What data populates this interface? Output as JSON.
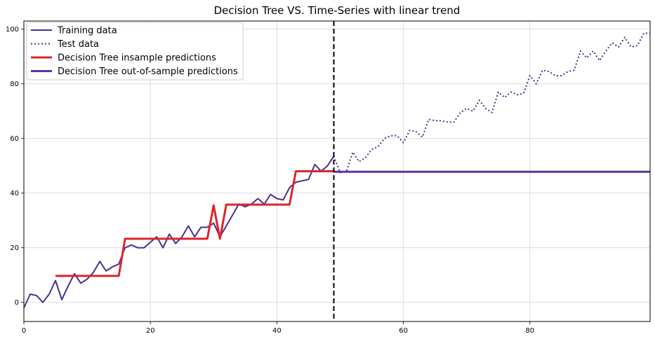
{
  "chart_data": {
    "type": "line",
    "title": "Decision Tree VS. Time-Series with linear trend",
    "xlabel": "",
    "ylabel": "",
    "xlim": [
      0,
      99
    ],
    "ylim": [
      -7,
      103
    ],
    "x_ticks": [
      0,
      20,
      40,
      60,
      80
    ],
    "y_ticks": [
      0,
      20,
      40,
      60,
      80,
      100
    ],
    "grid": true,
    "legend_position": "top-left",
    "split_line_x": 49,
    "colors": {
      "training": "#4b2f8f",
      "test": "#4b2f8f",
      "insample": "#d9262b",
      "outsample": "#5a33a0",
      "split": "#000000",
      "grid": "#d6d6d6"
    },
    "series": [
      {
        "name": "Training data",
        "style": "solid",
        "x": [
          0,
          1,
          2,
          3,
          4,
          5,
          6,
          7,
          8,
          9,
          10,
          11,
          12,
          13,
          14,
          15,
          16,
          17,
          18,
          19,
          20,
          21,
          22,
          23,
          24,
          25,
          26,
          27,
          28,
          29,
          30,
          31,
          32,
          33,
          34,
          35,
          36,
          37,
          38,
          39,
          40,
          41,
          42,
          43,
          44,
          45,
          46,
          47,
          48,
          49
        ],
        "y": [
          -2,
          3,
          2.5,
          0,
          3,
          8,
          1,
          6,
          10.5,
          7,
          8.5,
          11,
          15,
          11.5,
          13,
          14,
          20,
          21,
          20,
          20,
          22,
          24,
          20,
          25,
          21.5,
          24,
          28,
          24,
          27.5,
          27.5,
          29,
          24,
          28,
          32,
          36,
          35,
          36,
          38,
          36,
          39.5,
          38,
          37.5,
          42,
          44,
          44.5,
          45,
          50.5,
          48,
          50,
          53.5
        ]
      },
      {
        "name": "Test data",
        "style": "dotted",
        "x": [
          49,
          50,
          51,
          52,
          53,
          54,
          55,
          56,
          57,
          58,
          59,
          60,
          61,
          62,
          63,
          64,
          65,
          66,
          67,
          68,
          69,
          70,
          71,
          72,
          73,
          74,
          75,
          76,
          77,
          78,
          79,
          80,
          81,
          82,
          83,
          84,
          85,
          86,
          87,
          88,
          89,
          90,
          91,
          92,
          93,
          94,
          95,
          96,
          97,
          98,
          99
        ],
        "y": [
          53.5,
          47.5,
          48,
          55,
          51.5,
          53,
          56,
          57,
          60,
          61,
          61,
          58.5,
          63,
          62.5,
          60.5,
          67,
          66.5,
          66.5,
          66,
          66,
          69.5,
          71,
          70,
          74,
          71,
          69.5,
          77,
          75,
          77,
          76,
          76.5,
          83,
          80,
          85,
          84.5,
          83,
          83,
          84.5,
          85,
          92,
          89.5,
          92,
          88.5,
          92,
          95,
          93.5,
          97,
          93.5,
          94,
          98.5,
          98.5
        ]
      },
      {
        "name": "Decision Tree insample predictions",
        "style": "solid-thick",
        "x": [
          5,
          6,
          7,
          8,
          9,
          10,
          11,
          12,
          13,
          14,
          15,
          16,
          17,
          18,
          19,
          20,
          21,
          22,
          23,
          24,
          25,
          26,
          27,
          28,
          29,
          30,
          31,
          32,
          33,
          34,
          35,
          36,
          37,
          38,
          39,
          40,
          41,
          42,
          43,
          44,
          45,
          46,
          47,
          48,
          49
        ],
        "y": [
          9.7,
          9.7,
          9.7,
          9.7,
          9.7,
          9.7,
          9.7,
          9.7,
          9.7,
          9.7,
          9.7,
          23.3,
          23.3,
          23.3,
          23.3,
          23.3,
          23.3,
          23.3,
          23.3,
          23.3,
          23.3,
          23.3,
          23.3,
          23.3,
          23.3,
          35.5,
          23.3,
          35.8,
          35.8,
          35.8,
          35.8,
          35.8,
          35.8,
          35.8,
          35.8,
          35.8,
          35.8,
          35.8,
          48,
          48,
          48,
          48,
          48,
          48,
          48
        ]
      },
      {
        "name": "Decision Tree out-of-sample predictions",
        "style": "solid-thick",
        "x": [
          49,
          99
        ],
        "y": [
          47.8,
          47.8
        ]
      }
    ]
  }
}
